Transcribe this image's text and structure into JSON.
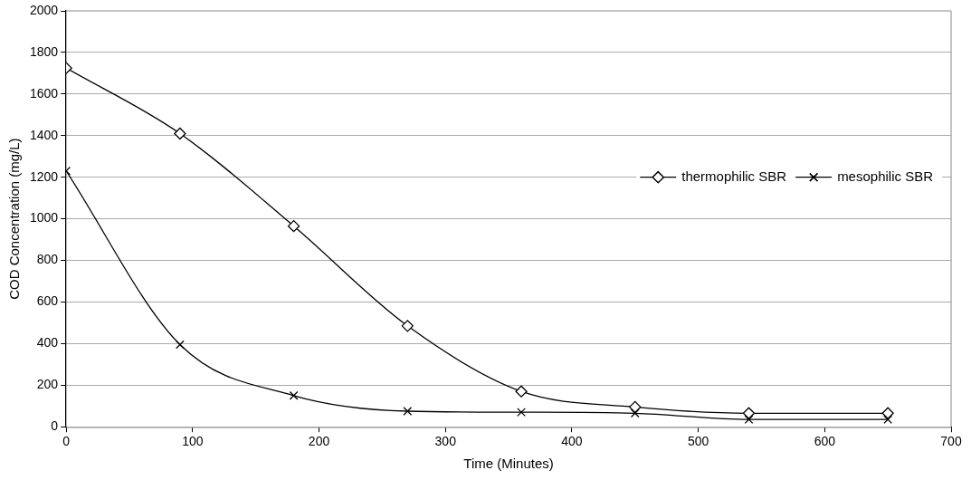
{
  "chart_data": {
    "type": "line",
    "xlabel": "Time (Minutes)",
    "ylabel": "COD Concentration (mg/L)",
    "xlim": [
      0,
      700
    ],
    "xticks": [
      0,
      100,
      200,
      300,
      400,
      500,
      600,
      700
    ],
    "ylim": [
      0,
      2000
    ],
    "yticks": [
      0,
      200,
      400,
      600,
      800,
      1000,
      1200,
      1400,
      1600,
      1800,
      2000
    ],
    "grid": "y",
    "legend": "right",
    "line_style": "solid",
    "x": [
      0,
      90,
      180,
      270,
      360,
      450,
      540,
      650
    ],
    "series": [
      {
        "name": "thermophilic SBR",
        "color": "#000000",
        "marker": "diamond",
        "values": [
          1725,
          1410,
          965,
          485,
          170,
          95,
          65,
          65
        ]
      },
      {
        "name": "mesophilic SBR",
        "color": "#000000",
        "marker": "cross",
        "values": [
          1230,
          395,
          150,
          75,
          70,
          65,
          35,
          35
        ]
      }
    ]
  }
}
